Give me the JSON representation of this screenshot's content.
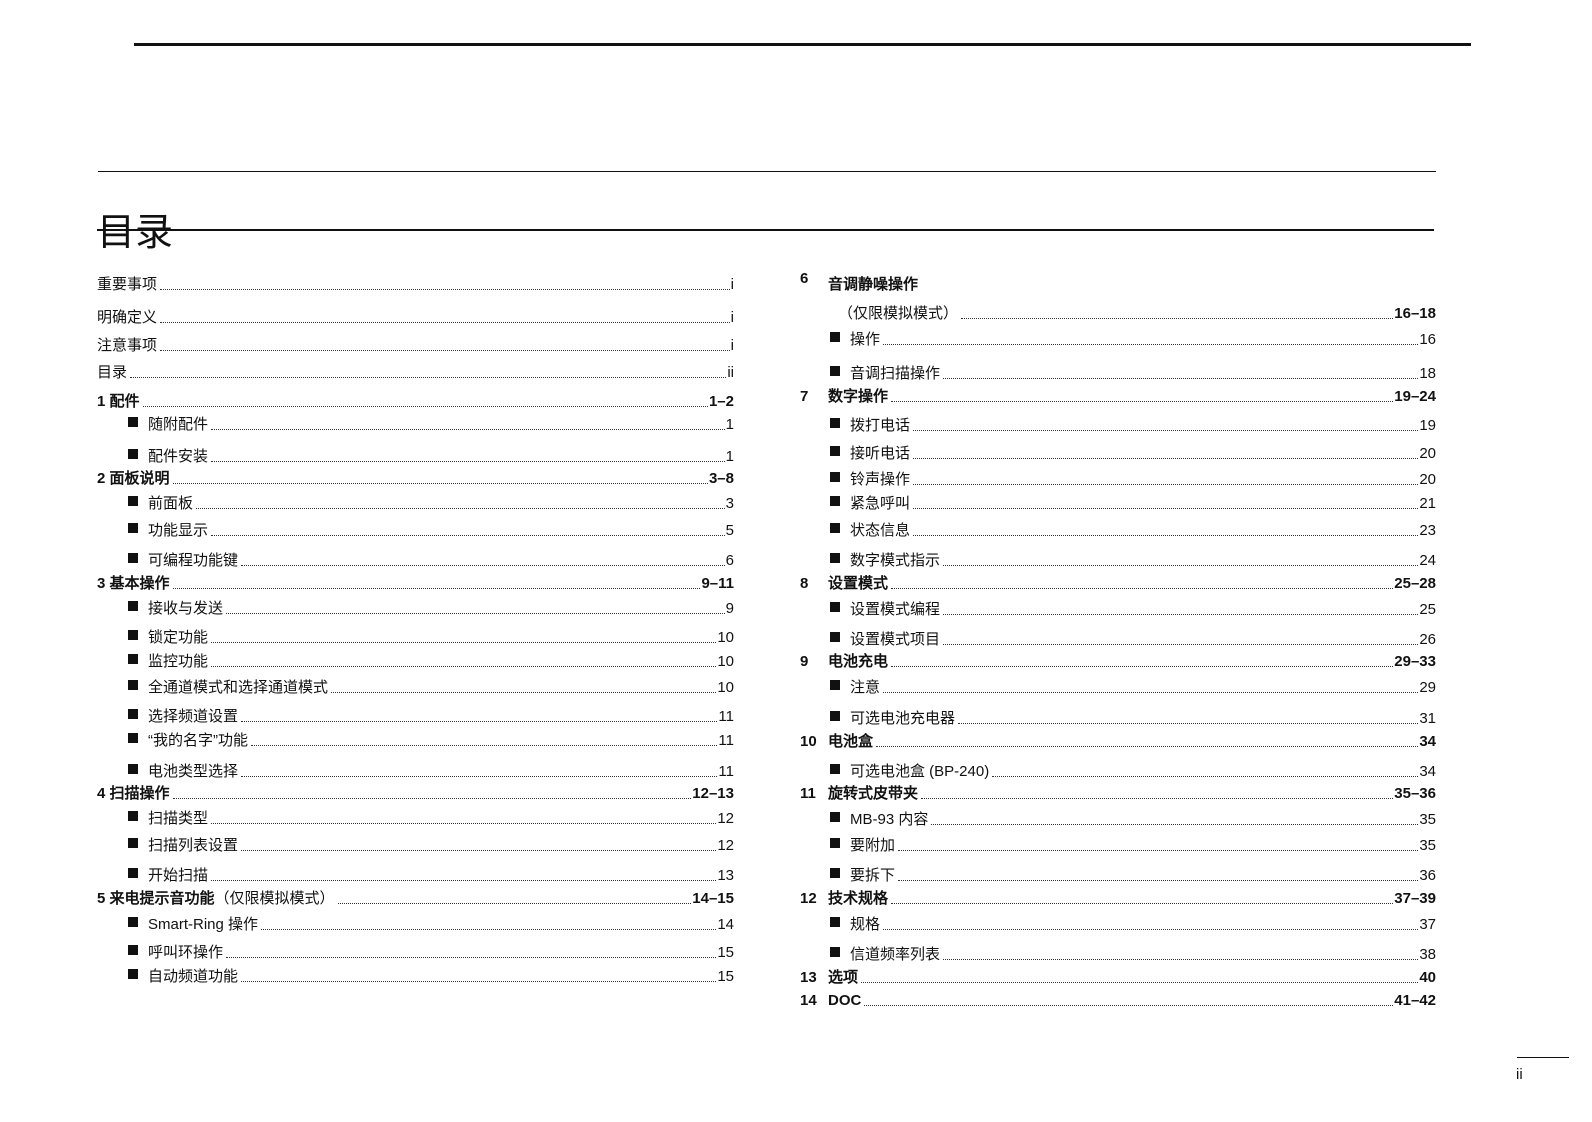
{
  "page": {
    "title": "目录",
    "page_number": "ii"
  },
  "left_column": [
    {
      "type": "plain",
      "label": "重要事项",
      "page": "i"
    },
    {
      "type": "plain",
      "label": "明确定义",
      "page": "i"
    },
    {
      "type": "plain",
      "label": "注意事项",
      "page": "i"
    },
    {
      "type": "plain",
      "label": "目录",
      "page": "ii"
    },
    {
      "type": "chapter",
      "label": "1 配件",
      "page": "1–2"
    },
    {
      "type": "sub",
      "label": "随附配件",
      "page": "1"
    },
    {
      "type": "sub",
      "label": "配件安装",
      "page": "1"
    },
    {
      "type": "chapter",
      "label": "2 面板说明",
      "page": "3–8"
    },
    {
      "type": "sub",
      "label": "前面板",
      "page": "3"
    },
    {
      "type": "sub",
      "label": "功能显示",
      "page": "5"
    },
    {
      "type": "sub",
      "label": "可编程功能键",
      "page": "6"
    },
    {
      "type": "chapter",
      "label": "3 基本操作",
      "page": "9–11"
    },
    {
      "type": "sub",
      "label": "接收与发送",
      "page": "9"
    },
    {
      "type": "sub",
      "label": "锁定功能",
      "page": "10"
    },
    {
      "type": "sub",
      "label": "监控功能",
      "page": "10"
    },
    {
      "type": "sub",
      "label": "全通道模式和选择通道模式",
      "page": "10"
    },
    {
      "type": "sub",
      "label": "选择频道设置",
      "page": "11"
    },
    {
      "type": "sub",
      "label": "“我的名字”功能",
      "page": "11"
    },
    {
      "type": "sub",
      "label": "电池类型选择",
      "page": "11"
    },
    {
      "type": "chapter",
      "label": "4 扫描操作",
      "page": "12–13"
    },
    {
      "type": "sub",
      "label": "扫描类型",
      "page": "12"
    },
    {
      "type": "sub",
      "label": "扫描列表设置",
      "page": "12"
    },
    {
      "type": "sub",
      "label": "开始扫描",
      "page": "13"
    },
    {
      "type": "chapter",
      "label": "5 来电提示音功能",
      "suffix": "（仅限模拟模式）",
      "page": "14–15"
    },
    {
      "type": "sub",
      "label": "Smart-Ring 操作",
      "page": "14"
    },
    {
      "type": "sub",
      "label": "呼叫环操作",
      "page": "15"
    },
    {
      "type": "sub",
      "label": "自动频道功能",
      "page": "15"
    }
  ],
  "right_column": [
    {
      "type": "heading",
      "number": "6",
      "label": "音调静噪操作"
    },
    {
      "type": "cont",
      "label": "（仅限模拟模式）",
      "page": "16–18"
    },
    {
      "type": "sub",
      "label": "操作",
      "page": "16"
    },
    {
      "type": "sub",
      "label": "音调扫描操作",
      "page": "18"
    },
    {
      "type": "chapter",
      "number": "7",
      "label": "数字操作",
      "page": "19–24"
    },
    {
      "type": "sub",
      "label": "拨打电话",
      "page": "19"
    },
    {
      "type": "sub",
      "label": "接听电话",
      "page": "20"
    },
    {
      "type": "sub",
      "label": "铃声操作",
      "page": "20"
    },
    {
      "type": "sub",
      "label": "紧急呼叫",
      "page": "21"
    },
    {
      "type": "sub",
      "label": "状态信息",
      "page": "23"
    },
    {
      "type": "sub",
      "label": "数字模式指示",
      "page": "24"
    },
    {
      "type": "chapter",
      "number": "8",
      "label": "设置模式",
      "page": "25–28"
    },
    {
      "type": "sub",
      "label": "设置模式编程",
      "page": "25"
    },
    {
      "type": "sub",
      "label": "设置模式项目",
      "page": "26"
    },
    {
      "type": "chapter",
      "number": "9",
      "label": "电池充电",
      "page": "29–33"
    },
    {
      "type": "sub",
      "label": "注意",
      "page": "29"
    },
    {
      "type": "sub",
      "label": "可选电池充电器",
      "page": "31"
    },
    {
      "type": "chapter",
      "number": "10",
      "label": "电池盒",
      "page": "34"
    },
    {
      "type": "sub",
      "label": "可选电池盒 (BP-240)",
      "page": "34"
    },
    {
      "type": "chapter",
      "number": "11",
      "label": "旋转式皮带夹",
      "page": "35–36"
    },
    {
      "type": "sub",
      "label": "MB-93 内容",
      "page": "35"
    },
    {
      "type": "sub",
      "label": "要附加",
      "page": "35"
    },
    {
      "type": "sub",
      "label": "要拆下",
      "page": "36"
    },
    {
      "type": "chapter",
      "number": "12",
      "label": "技术规格",
      "page": "37–39"
    },
    {
      "type": "sub",
      "label": "规格",
      "page": "37"
    },
    {
      "type": "sub",
      "label": "信道频率列表",
      "page": "38"
    },
    {
      "type": "chapter",
      "number": "13",
      "label": "选项",
      "page": "40"
    },
    {
      "type": "chapter",
      "number": "14",
      "label": "DOC",
      "page": "41–42"
    }
  ]
}
